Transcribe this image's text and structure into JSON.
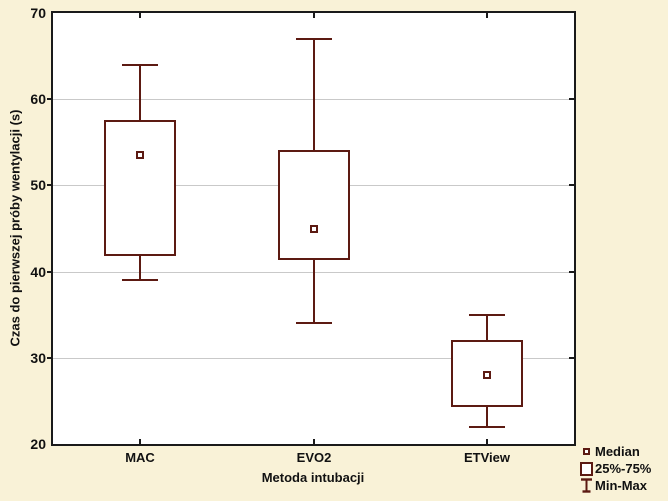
{
  "chart_data": {
    "type": "box",
    "title": "",
    "xlabel": "Metoda intubacji",
    "ylabel": "Czas do pierwszej próby wentylacji (s)",
    "ylim": [
      20,
      70
    ],
    "yticks": [
      20,
      30,
      40,
      50,
      60,
      70
    ],
    "grid": true,
    "legend_position": "bottom-right",
    "categories": [
      "MAC",
      "EVO2",
      "ETView"
    ],
    "series": [
      {
        "name": "MAC",
        "min": 39,
        "q1": 42,
        "median": 53.5,
        "q3": 57.5,
        "max": 64
      },
      {
        "name": "EVO2",
        "min": 34,
        "q1": 41.5,
        "median": 45,
        "q3": 54,
        "max": 67
      },
      {
        "name": "ETView",
        "min": 22,
        "q1": 24.5,
        "median": 28,
        "q3": 32,
        "max": 35
      }
    ],
    "legend": {
      "median": "Median",
      "box": "25%-75%",
      "minmax": "Min-Max"
    },
    "colors": {
      "background": "#F9F2D7",
      "plot_background": "#FFFFFF",
      "box": "#5C1A12",
      "grid": "#C9C9C9",
      "axis": "#1A1A1A",
      "text": "#111111"
    }
  }
}
